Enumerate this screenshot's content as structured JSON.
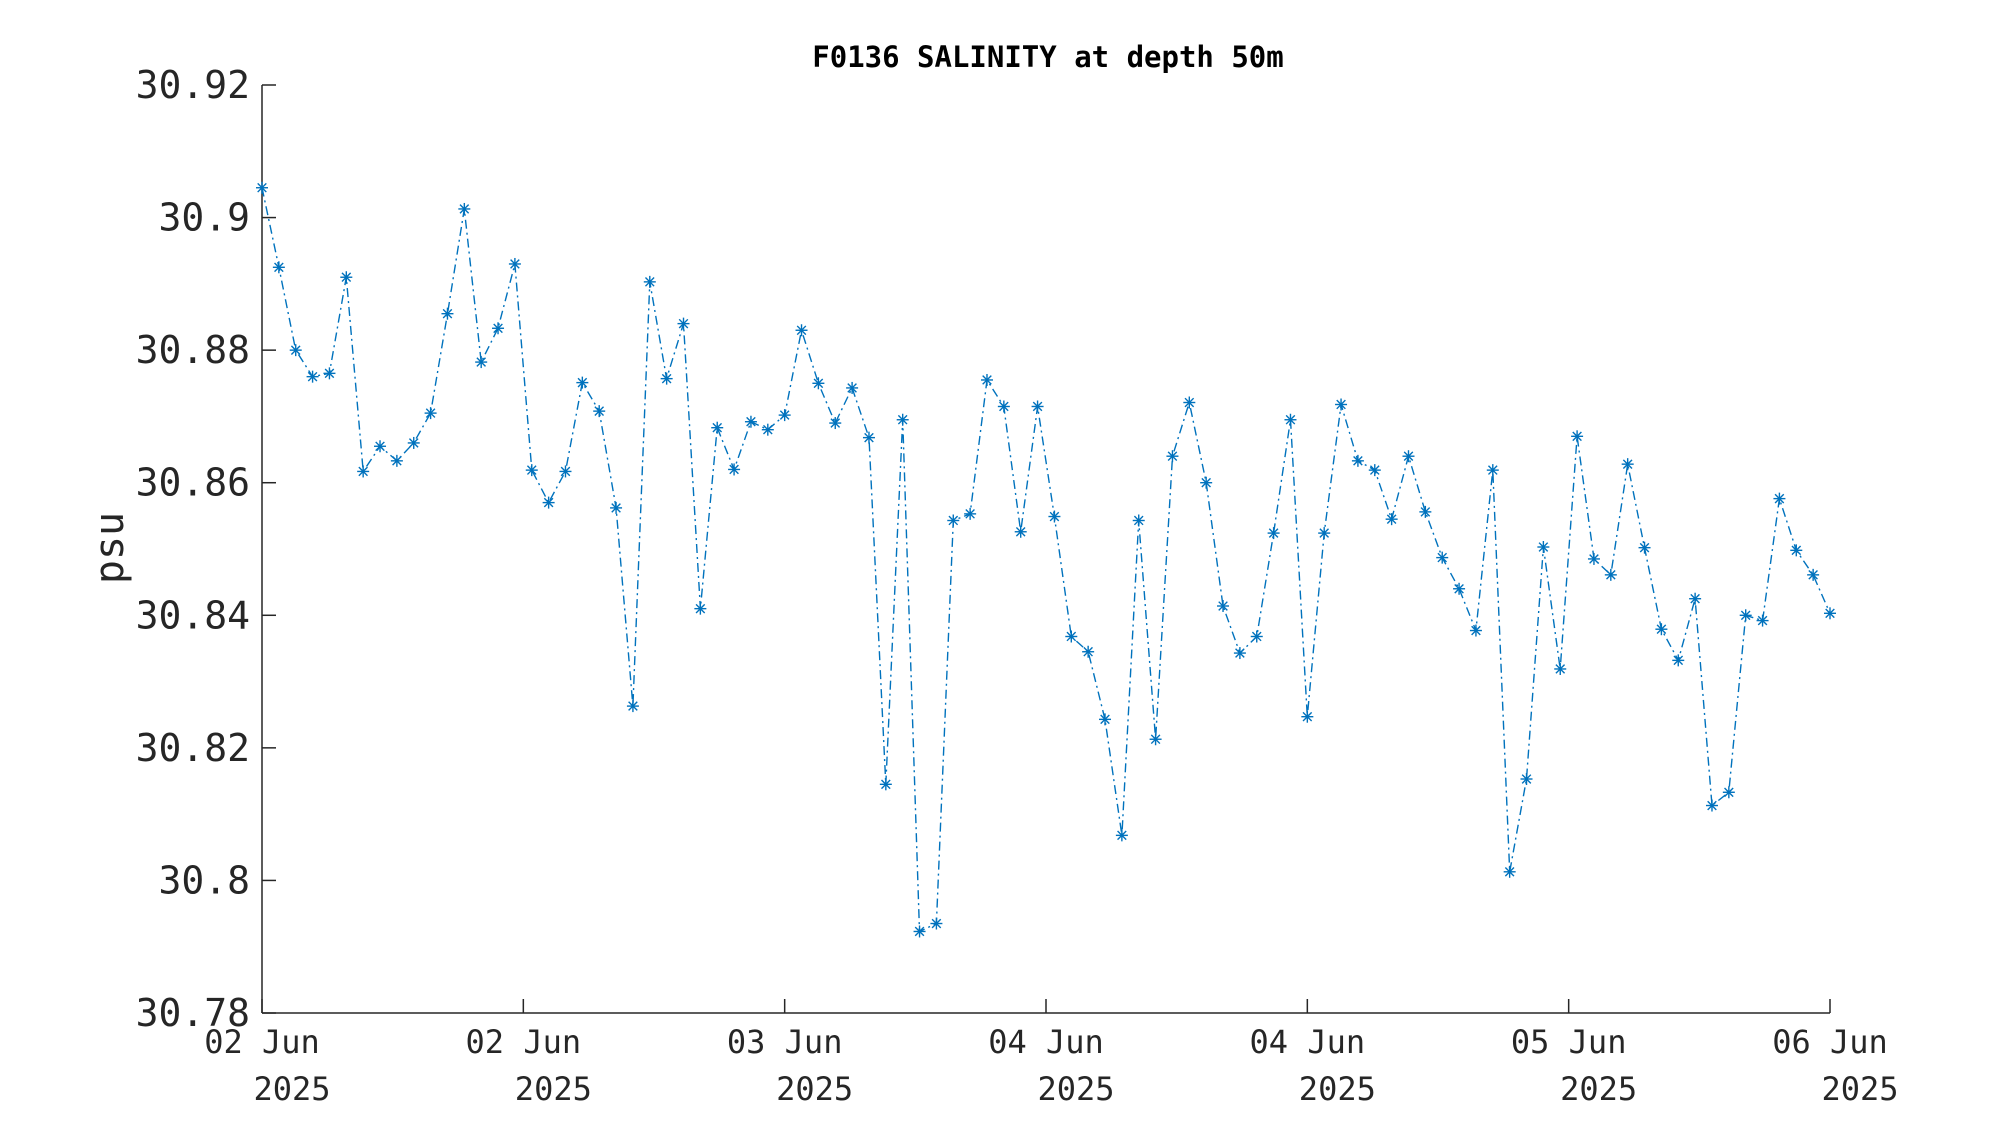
{
  "chart_data": {
    "type": "line",
    "title": "F0136 SALINITY at depth 50m",
    "xlabel": "",
    "ylabel": "psu",
    "ylim": [
      30.78,
      30.92
    ],
    "y_ticks": [
      "30.78",
      "30.8",
      "30.82",
      "30.84",
      "30.86",
      "30.88",
      "30.9",
      "30.92"
    ],
    "x_ticks": [
      {
        "line1": "02 Jun",
        "line2": "2025"
      },
      {
        "line1": "02 Jun",
        "line2": "2025"
      },
      {
        "line1": "03 Jun",
        "line2": "2025"
      },
      {
        "line1": "04 Jun",
        "line2": "2025"
      },
      {
        "line1": "04 Jun",
        "line2": "2025"
      },
      {
        "line1": "05 Jun",
        "line2": "2025"
      },
      {
        "line1": "06 Jun",
        "line2": "2025"
      }
    ],
    "grid": false,
    "line_style": "dash-dot",
    "marker": "asterisk",
    "series": [
      {
        "color": "#0072BD",
        "values": [
          30.9045,
          30.8925,
          30.88,
          30.876,
          30.8765,
          30.891,
          30.8617,
          30.8655,
          30.8633,
          30.866,
          30.8705,
          30.8855,
          30.9013,
          30.8782,
          30.8833,
          30.893,
          30.8619,
          30.857,
          30.8617,
          30.8751,
          30.8708,
          30.8562,
          30.8263,
          30.8903,
          30.8757,
          30.884,
          30.841,
          30.8683,
          30.862,
          30.8692,
          30.868,
          30.8702,
          30.883,
          30.875,
          30.869,
          30.8743,
          30.8668,
          30.8145,
          30.8695,
          30.7923,
          30.7935,
          30.8543,
          30.8553,
          30.8755,
          30.8715,
          30.8526,
          30.8715,
          30.8549,
          30.8368,
          30.8345,
          30.8243,
          30.8068,
          30.8543,
          30.8213,
          30.864,
          30.8721,
          30.86,
          30.8414,
          30.8343,
          30.8368,
          30.8524,
          30.8695,
          30.8247,
          30.8524,
          30.8718,
          30.8633,
          30.8619,
          30.8545,
          30.864,
          30.8556,
          30.8487,
          30.844,
          30.8377,
          30.8619,
          30.8013,
          30.8153,
          30.8503,
          30.8319,
          30.867,
          30.8485,
          30.8461,
          30.8628,
          30.8502,
          30.8379,
          30.8332,
          30.8425,
          30.8113,
          30.8133,
          30.84,
          30.8392,
          30.8576,
          30.8498,
          30.8461,
          30.8403
        ]
      }
    ]
  }
}
